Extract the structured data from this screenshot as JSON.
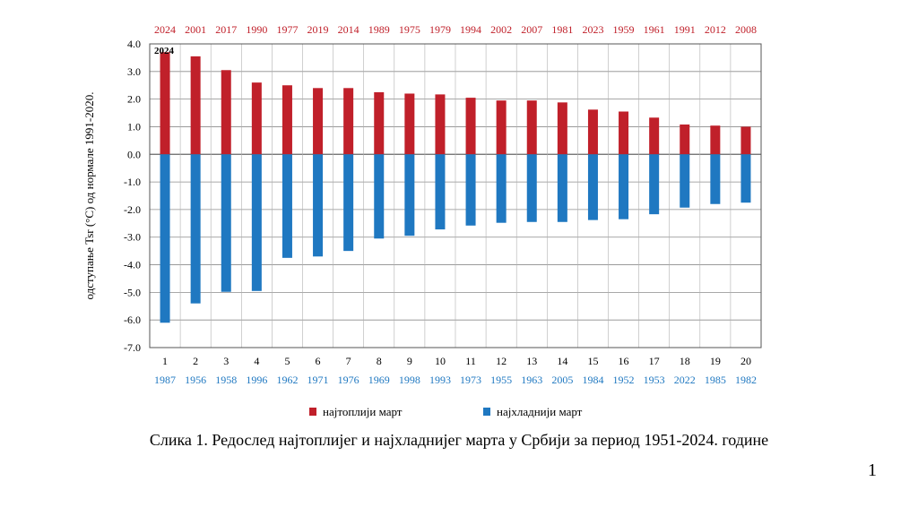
{
  "chart_data": {
    "type": "bar",
    "ylabel": "одступање Tsr (°C)  од  нормале 1991-2020.",
    "ylim": [
      -7.0,
      4.0
    ],
    "yticks": [
      "4.0",
      "3.0",
      "2.0",
      "1.0",
      "0.0",
      "-1.0",
      "-2.0",
      "-3.0",
      "-4.0",
      "-5.0",
      "-6.0",
      "-7.0"
    ],
    "ytick_values": [
      4,
      3,
      2,
      1,
      0,
      -1,
      -2,
      -3,
      -4,
      -5,
      -6,
      -7
    ],
    "categories": [
      "1",
      "2",
      "3",
      "4",
      "5",
      "6",
      "7",
      "8",
      "9",
      "10",
      "11",
      "12",
      "13",
      "14",
      "15",
      "16",
      "17",
      "18",
      "19",
      "20"
    ],
    "annotation": "2024",
    "grid": true,
    "legend_position": "bottom",
    "series": [
      {
        "name": "најтоплији март",
        "color": "#c0202a",
        "label_color": "#c0202a",
        "years": [
          "2024",
          "2001",
          "2017",
          "1990",
          "1977",
          "2019",
          "2014",
          "1989",
          "1975",
          "1979",
          "1994",
          "2002",
          "2007",
          "1981",
          "2023",
          "1959",
          "1961",
          "1991",
          "2012",
          "2008"
        ],
        "values": [
          3.7,
          3.55,
          3.05,
          2.6,
          2.5,
          2.4,
          2.4,
          2.25,
          2.2,
          2.17,
          2.05,
          1.95,
          1.95,
          1.88,
          1.62,
          1.55,
          1.33,
          1.08,
          1.04,
          1.0
        ]
      },
      {
        "name": "најхладнији март",
        "color": "#1f78c1",
        "label_color": "#1f78c1",
        "years": [
          "1987",
          "1956",
          "1958",
          "1996",
          "1962",
          "1971",
          "1976",
          "1969",
          "1998",
          "1993",
          "1973",
          "1955",
          "1963",
          "2005",
          "1984",
          "1952",
          "1953",
          "2022",
          "1985",
          "1982"
        ],
        "values": [
          -6.1,
          -5.4,
          -4.98,
          -4.95,
          -3.75,
          -3.7,
          -3.5,
          -3.05,
          -2.95,
          -2.72,
          -2.58,
          -2.48,
          -2.45,
          -2.45,
          -2.38,
          -2.35,
          -2.17,
          -1.93,
          -1.8,
          -1.75
        ]
      }
    ]
  },
  "caption": "Слика 1. Редослед најтоплијег и најхладнијег марта у Србији за период 1951-2024. године",
  "page_number": "1"
}
